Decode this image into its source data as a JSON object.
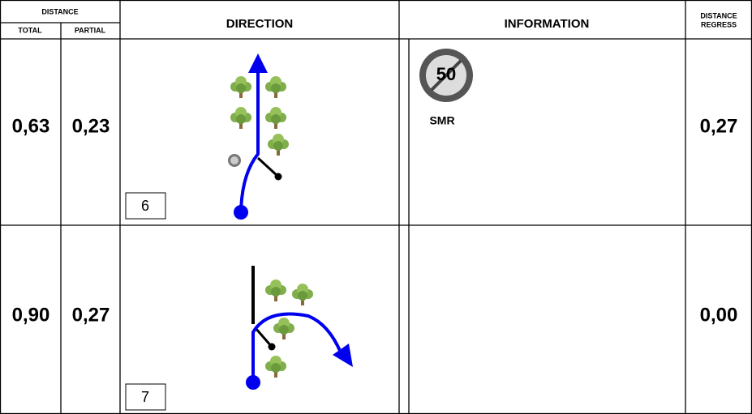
{
  "header": {
    "distance": "DISTANCE",
    "total": "TOTAL",
    "partial": "PARTIAL",
    "direction": "DIRECTION",
    "information": "INFORMATION",
    "regress": [
      "DISTANCE",
      "REGRESS"
    ]
  },
  "rows": [
    {
      "total": "0,63",
      "partial": "0,23",
      "box": "6",
      "sign": "50",
      "info": "SMR",
      "regress": "0,27"
    },
    {
      "total": "0,90",
      "partial": "0,27",
      "box": "7",
      "regress": "0,00"
    }
  ]
}
